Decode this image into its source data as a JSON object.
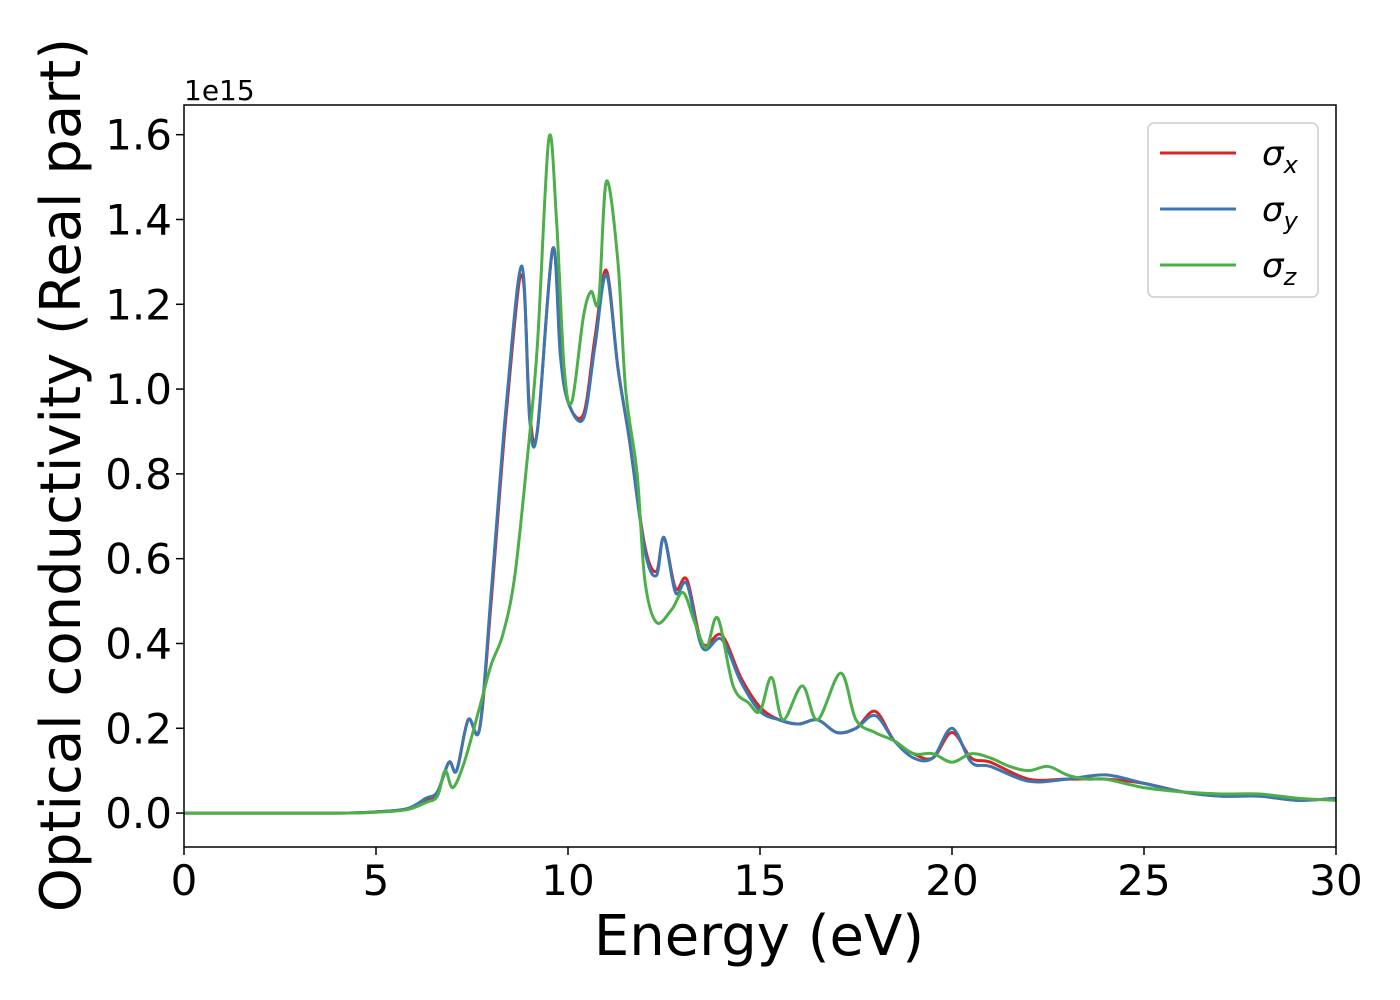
{
  "chart_data": {
    "type": "line",
    "xlabel": "Energy (eV)",
    "ylabel": "Optical conductivity (Real part)",
    "y_offset_label": "1e15",
    "xlim": [
      0,
      30
    ],
    "ylim": [
      -0.08,
      1.67
    ],
    "x_ticks": [
      0,
      5,
      10,
      15,
      20,
      25,
      30
    ],
    "x_tick_labels": [
      "0",
      "5",
      "10",
      "15",
      "20",
      "25",
      "30"
    ],
    "y_ticks": [
      0.0,
      0.2,
      0.4,
      0.6,
      0.8,
      1.0,
      1.2,
      1.4,
      1.6
    ],
    "y_tick_labels": [
      "0.0",
      "0.2",
      "0.4",
      "0.6",
      "0.8",
      "1.0",
      "1.2",
      "1.4",
      "1.6"
    ],
    "grid": false,
    "legend_position": "top-right",
    "series": [
      {
        "name": "σx",
        "symbol": "σ",
        "subscript": "x",
        "color": "#d62728",
        "x": [
          0,
          4,
          5,
          5.8,
          6.3,
          6.6,
          6.9,
          7.1,
          7.4,
          7.7,
          8.0,
          8.4,
          8.8,
          9.0,
          9.2,
          9.6,
          9.8,
          10.0,
          10.4,
          10.7,
          11.0,
          11.3,
          11.6,
          12.0,
          12.3,
          12.5,
          12.8,
          13.1,
          13.5,
          14.0,
          14.5,
          15.0,
          15.5,
          16.0,
          16.5,
          17.0,
          17.5,
          18.0,
          18.5,
          19.0,
          19.5,
          20.0,
          20.5,
          21.0,
          22.0,
          23.0,
          24.0,
          25.0,
          26.0,
          27.0,
          28.0,
          29.0,
          30.0
        ],
        "y": [
          0.0,
          0.0,
          0.003,
          0.01,
          0.03,
          0.05,
          0.12,
          0.1,
          0.22,
          0.2,
          0.5,
          0.95,
          1.27,
          0.95,
          0.9,
          1.33,
          1.1,
          0.97,
          0.94,
          1.12,
          1.28,
          1.05,
          0.88,
          0.63,
          0.57,
          0.65,
          0.53,
          0.55,
          0.4,
          0.42,
          0.32,
          0.25,
          0.22,
          0.21,
          0.22,
          0.19,
          0.2,
          0.24,
          0.17,
          0.14,
          0.13,
          0.19,
          0.13,
          0.12,
          0.08,
          0.08,
          0.08,
          0.07,
          0.05,
          0.04,
          0.04,
          0.03,
          0.035
        ]
      },
      {
        "name": "σy",
        "symbol": "σ",
        "subscript": "y",
        "color": "#3b78b0",
        "x": [
          0,
          4,
          5,
          5.8,
          6.3,
          6.6,
          6.9,
          7.1,
          7.4,
          7.7,
          8.0,
          8.4,
          8.8,
          9.0,
          9.2,
          9.6,
          9.8,
          10.0,
          10.4,
          10.7,
          11.0,
          11.3,
          11.6,
          12.0,
          12.3,
          12.5,
          12.8,
          13.1,
          13.5,
          14.0,
          14.5,
          15.0,
          15.5,
          16.0,
          16.5,
          17.0,
          17.5,
          18.0,
          18.5,
          19.0,
          19.5,
          20.0,
          20.5,
          21.0,
          22.0,
          23.0,
          24.0,
          25.0,
          26.0,
          27.0,
          28.0,
          29.0,
          30.0
        ],
        "y": [
          0.0,
          0.0,
          0.003,
          0.01,
          0.035,
          0.05,
          0.12,
          0.1,
          0.22,
          0.2,
          0.52,
          0.97,
          1.29,
          0.93,
          0.9,
          1.33,
          1.08,
          0.97,
          0.93,
          1.1,
          1.27,
          1.05,
          0.88,
          0.62,
          0.56,
          0.65,
          0.52,
          0.54,
          0.39,
          0.41,
          0.31,
          0.24,
          0.22,
          0.21,
          0.22,
          0.19,
          0.2,
          0.23,
          0.17,
          0.13,
          0.13,
          0.2,
          0.12,
          0.11,
          0.075,
          0.08,
          0.09,
          0.07,
          0.05,
          0.04,
          0.04,
          0.03,
          0.035
        ]
      },
      {
        "name": "σz",
        "symbol": "σ",
        "subscript": "z",
        "color": "#4daf4a",
        "x": [
          0,
          4,
          5,
          5.8,
          6.3,
          6.6,
          6.8,
          7.0,
          7.3,
          7.7,
          8.0,
          8.3,
          8.6,
          8.9,
          9.2,
          9.5,
          9.7,
          9.9,
          10.1,
          10.4,
          10.6,
          10.8,
          11.0,
          11.3,
          11.5,
          11.8,
          12.0,
          12.3,
          12.7,
          13.0,
          13.3,
          13.6,
          13.9,
          14.3,
          14.7,
          15.0,
          15.3,
          15.6,
          16.1,
          16.5,
          17.1,
          17.5,
          18.0,
          18.5,
          19.0,
          19.5,
          20.0,
          20.5,
          21.0,
          21.5,
          22.0,
          22.5,
          23.0,
          23.5,
          24.0,
          25.0,
          26.0,
          27.0,
          28.0,
          29.0,
          30.0
        ],
        "y": [
          0.0,
          0.0,
          0.002,
          0.008,
          0.025,
          0.04,
          0.1,
          0.06,
          0.12,
          0.25,
          0.35,
          0.42,
          0.55,
          0.8,
          1.1,
          1.59,
          1.4,
          1.05,
          0.97,
          1.17,
          1.23,
          1.21,
          1.49,
          1.3,
          1.0,
          0.8,
          0.55,
          0.45,
          0.48,
          0.52,
          0.45,
          0.39,
          0.46,
          0.3,
          0.26,
          0.24,
          0.32,
          0.22,
          0.3,
          0.22,
          0.33,
          0.22,
          0.19,
          0.17,
          0.14,
          0.14,
          0.12,
          0.14,
          0.13,
          0.11,
          0.1,
          0.11,
          0.09,
          0.08,
          0.08,
          0.06,
          0.05,
          0.045,
          0.045,
          0.035,
          0.03
        ]
      }
    ]
  }
}
